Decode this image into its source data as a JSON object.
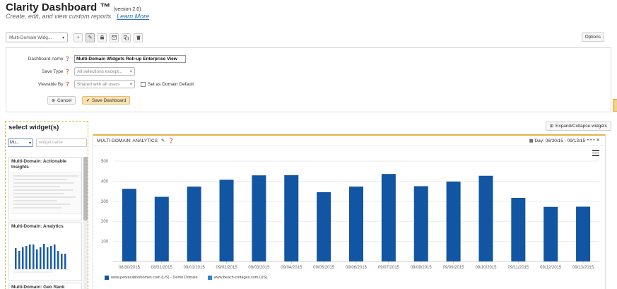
{
  "header": {
    "title": "Clarity Dashboard ™",
    "version": "(version 2.0)",
    "subtitle": "Create, edit, and view custom reports.",
    "learn_more": "Learn More"
  },
  "toolbar": {
    "dashboard_select": "Multi-Domain Widg...",
    "icons": [
      "plus-icon",
      "pencil-icon",
      "print-icon",
      "email-icon",
      "copy-icon",
      "trash-icon"
    ],
    "options_label": "Options"
  },
  "form": {
    "name_label": "Dashboard name",
    "name_value": "Multi-Domain Widgets Roll-up Enterprise View",
    "save_type_label": "Save Type",
    "save_type_value": "All selections except...",
    "viewable_label": "Viewable By",
    "viewable_value": "Shared with all users",
    "domain_default_label": "Set as Domain Default",
    "cancel_label": "Cancel",
    "save_label": "Save Dashboard"
  },
  "widgets": {
    "title": "select widget(s)",
    "filter_value": "Mu...",
    "search_placeholder": "widget name",
    "items": [
      {
        "title": "Multi-Domain: Actionable Insights"
      },
      {
        "title": "Multi-Domain: Analytics"
      },
      {
        "title": "Multi-Domain: Geo Rank"
      }
    ]
  },
  "expand_label": "Expand/Collapse widgets",
  "panel": {
    "title": "MULTI-DOMAIN: ANALYTICS",
    "date_label": "Day: 08/30/15 - 09/13/15"
  },
  "colors": {
    "accent": "#e8b347",
    "bar_primary": "#1155a3",
    "bar_secondary": "#2e86c9",
    "save_button": "#fbe2b0"
  },
  "chart_data": {
    "type": "bar",
    "categories": [
      "08/30/2015",
      "08/31/2015",
      "09/01/2015",
      "09/02/2015",
      "09/03/2015",
      "09/04/2015",
      "09/05/2015",
      "09/06/2015",
      "09/07/2015",
      "09/08/2015",
      "09/09/2015",
      "09/10/2015",
      "09/11/2015",
      "09/12/2015",
      "09/13/2015"
    ],
    "series": [
      {
        "name": "www.petvacationhomes.com (US) - Demo Domain",
        "values": [
          362,
          322,
          373,
          407,
          429,
          430,
          345,
          373,
          436,
          375,
          398,
          427,
          317,
          272,
          273
        ]
      },
      {
        "name": "www.beach-cottages.com (US)",
        "values": [
          0,
          0,
          0,
          0,
          0,
          0,
          0,
          0,
          0,
          0,
          0,
          0,
          0,
          0,
          0
        ]
      }
    ],
    "yticks": [
      100,
      200,
      300,
      400,
      500
    ],
    "ylim": [
      0,
      500
    ],
    "grid": true,
    "legend": "bottom-left",
    "xlabel": "",
    "ylabel": ""
  }
}
